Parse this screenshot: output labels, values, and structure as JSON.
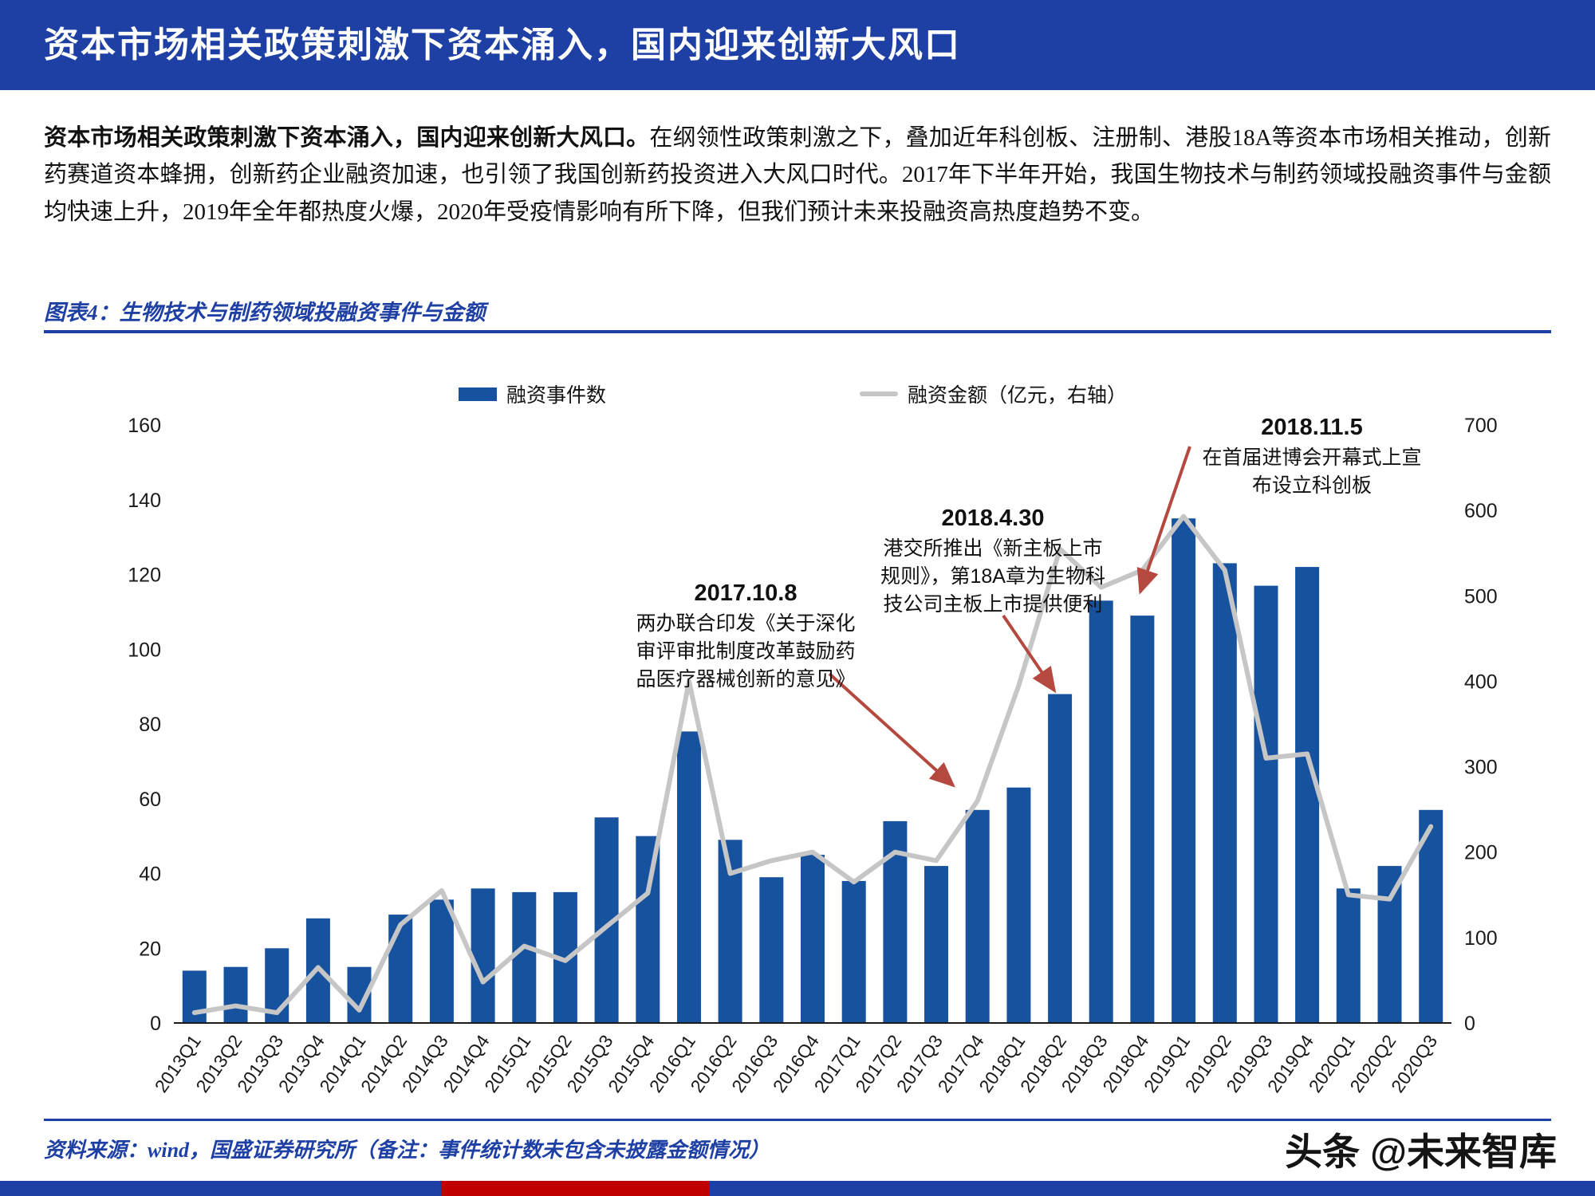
{
  "header": {
    "title": "资本市场相关政策刺激下资本涌入，国内迎来创新大风口"
  },
  "paragraph": {
    "lead": "资本市场相关政策刺激下资本涌入，国内迎来创新大风口。",
    "body": "在纲领性政策刺激之下，叠加近年科创板、注册制、港股18A等资本市场相关推动，创新药赛道资本蜂拥，创新药企业融资加速，也引领了我国创新药投资进入大风口时代。2017年下半年开始，我国生物技术与制药领域投融资事件与金额均快速上升，2019年全年都热度火爆，2020年受疫情影响有所下降，但我们预计未来投融资高热度趋势不变。"
  },
  "figure": {
    "caption": "图表4：生物技术与制药领域投融资事件与金额"
  },
  "chart_data": {
    "type": "bar",
    "subtype": "bar+line combo, dual axis",
    "title": "生物技术与制药领域投融资事件与金额",
    "grid": false,
    "legend_position": "top",
    "categories": [
      "2013Q1",
      "2013Q2",
      "2013Q3",
      "2013Q4",
      "2014Q1",
      "2014Q2",
      "2014Q3",
      "2014Q4",
      "2015Q1",
      "2015Q2",
      "2015Q3",
      "2015Q4",
      "2016Q1",
      "2016Q2",
      "2016Q3",
      "2016Q4",
      "2017Q1",
      "2017Q2",
      "2017Q3",
      "2017Q4",
      "2018Q1",
      "2018Q2",
      "2018Q3",
      "2018Q4",
      "2019Q1",
      "2019Q2",
      "2019Q3",
      "2019Q4",
      "2020Q1",
      "2020Q2",
      "2020Q3"
    ],
    "series": [
      {
        "name": "融资事件数",
        "type": "bar",
        "axis": "left",
        "color": "#17529e",
        "values": [
          14,
          15,
          20,
          28,
          15,
          29,
          33,
          36,
          35,
          35,
          55,
          50,
          78,
          49,
          39,
          45,
          38,
          54,
          42,
          57,
          63,
          88,
          113,
          109,
          135,
          123,
          117,
          122,
          36,
          42,
          57
        ]
      },
      {
        "name": "融资金额（亿元，右轴）",
        "type": "line",
        "axis": "right",
        "color": "#c6c6c6",
        "values": [
          12,
          20,
          12,
          65,
          15,
          115,
          155,
          48,
          90,
          73,
          113,
          152,
          400,
          175,
          190,
          200,
          165,
          200,
          190,
          260,
          395,
          555,
          510,
          530,
          593,
          530,
          310,
          315,
          150,
          145,
          230
        ]
      }
    ],
    "left_axis": {
      "min": 0,
      "max": 160,
      "step": 20
    },
    "right_axis": {
      "min": 0,
      "max": 700,
      "step": 100
    },
    "annotations": [
      {
        "title": "2017.10.8",
        "lines": [
          "两办联合印发《关于深化",
          "审评审批制度改革鼓励药",
          "品医疗器械创新的意见》"
        ]
      },
      {
        "title": "2018.4.30",
        "lines": [
          "港交所推出《新主板上市",
          "规则》，第18A章为生物科",
          "技公司主板上市提供便利"
        ]
      },
      {
        "title": "2018.11.5",
        "lines": [
          "在首届进博会开幕式上宣",
          "布设立科创板"
        ]
      }
    ]
  },
  "footer": {
    "source": "资料来源：wind，国盛证券研究所（备注：事件统计数未包含未披露金额情况）",
    "brand": "头条 @未来智库"
  }
}
